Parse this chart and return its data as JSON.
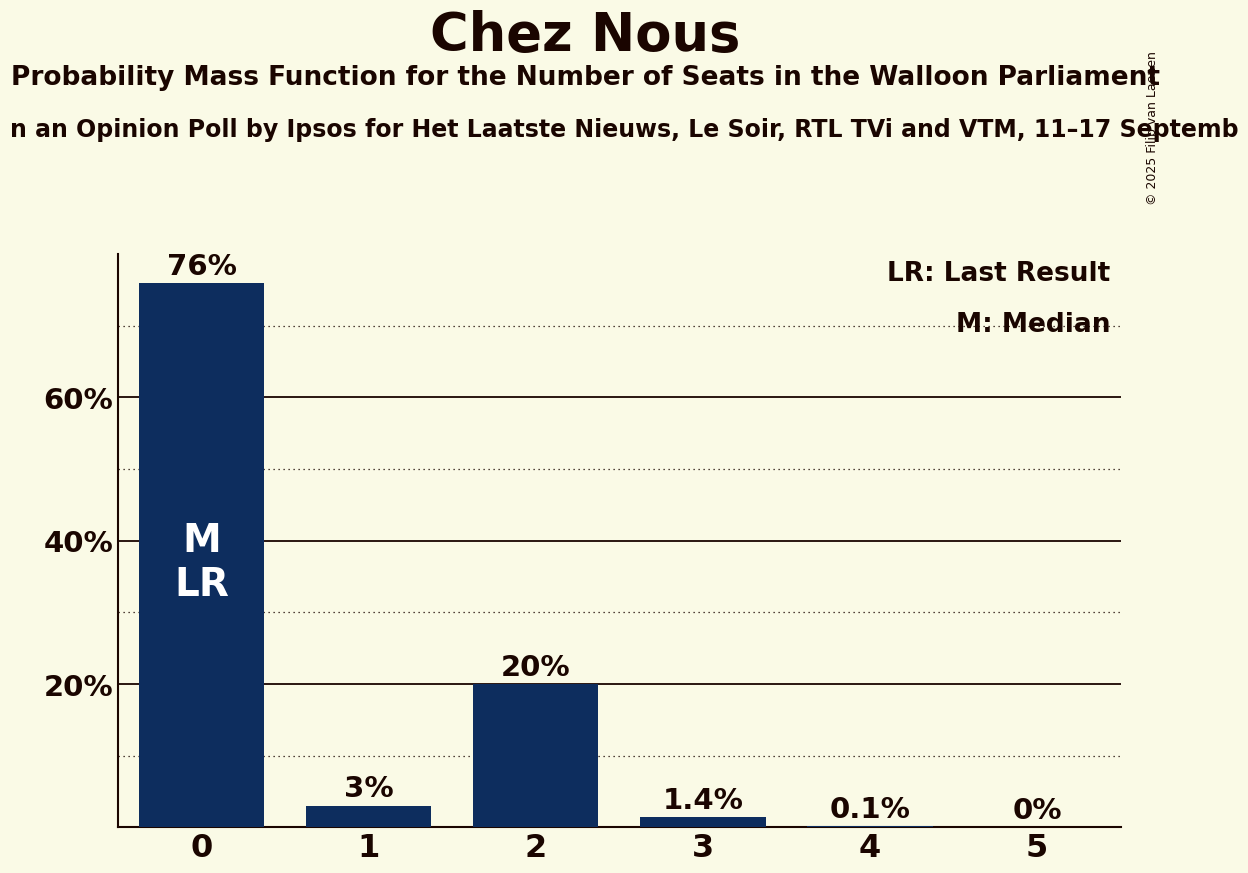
{
  "title": "Chez Nous",
  "subtitle": "Probability Mass Function for the Number of Seats in the Walloon Parliament",
  "subsubtitle": "n an Opinion Poll by Ipsos for Het Laatste Nieuws, Le Soir, RTL TVi and VTM, 11–17 Septemb",
  "copyright": "© 2025 Filip van Laenen",
  "categories": [
    0,
    1,
    2,
    3,
    4,
    5
  ],
  "values": [
    0.76,
    0.03,
    0.2,
    0.014,
    0.001,
    0.0
  ],
  "bar_labels": [
    "76%",
    "3%",
    "20%",
    "1.4%",
    "0.1%",
    "0%"
  ],
  "bar_color": "#0D2D5E",
  "background_color": "#FAFAE6",
  "text_color": "#1A0500",
  "bar_text_color": "#FFFFFF",
  "legend_lr": "LR: Last Result",
  "legend_m": "M: Median",
  "ylim": [
    0,
    0.8
  ],
  "yticks": [
    0.2,
    0.4,
    0.6
  ],
  "ytick_labels": [
    "20%",
    "40%",
    "60%"
  ],
  "dotted_yticks": [
    0.1,
    0.3,
    0.5,
    0.7
  ],
  "solid_yticks": [
    0.2,
    0.4,
    0.6
  ],
  "title_fontsize": 38,
  "subtitle_fontsize": 19,
  "subsubtitle_fontsize": 17,
  "bar_label_fontsize": 21,
  "ytick_fontsize": 21,
  "xtick_fontsize": 23,
  "legend_fontsize": 19,
  "inner_label_fontsize": 28,
  "copyright_fontsize": 9
}
